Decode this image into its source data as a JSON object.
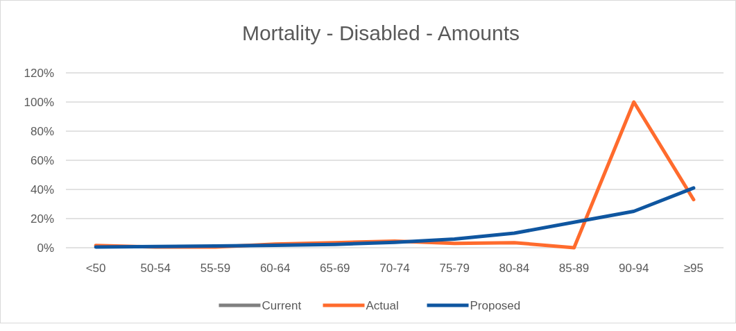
{
  "chart_data": {
    "type": "line",
    "title": "Mortality - Disabled - Amounts",
    "categories": [
      "<50",
      "50-54",
      "55-59",
      "60-64",
      "65-69",
      "70-74",
      "75-79",
      "80-84",
      "85-89",
      "90-94",
      "≥95"
    ],
    "series": [
      {
        "name": "Current",
        "color": "#808080",
        "values": [
          null,
          null,
          null,
          null,
          null,
          null,
          null,
          null,
          null,
          null,
          null
        ]
      },
      {
        "name": "Actual",
        "color": "#ff6b2d",
        "values": [
          1.5,
          0.5,
          0.5,
          2.5,
          3.5,
          4.5,
          3,
          3.5,
          0,
          100,
          33
        ]
      },
      {
        "name": "Proposed",
        "color": "#0f56a0",
        "values": [
          0.5,
          0.8,
          1.2,
          1.7,
          2.3,
          3.7,
          6,
          10,
          17.5,
          25,
          41
        ]
      }
    ],
    "ylim": [
      0,
      120
    ],
    "yticks": [
      {
        "value": 0,
        "label": "0%"
      },
      {
        "value": 20,
        "label": "20%"
      },
      {
        "value": 40,
        "label": "40%"
      },
      {
        "value": 60,
        "label": "60%"
      },
      {
        "value": 80,
        "label": "80%"
      },
      {
        "value": 100,
        "label": "100%"
      },
      {
        "value": 120,
        "label": "120%"
      }
    ],
    "grid": "y",
    "legend": "bottom",
    "line_style": "solid",
    "marker": "none"
  }
}
